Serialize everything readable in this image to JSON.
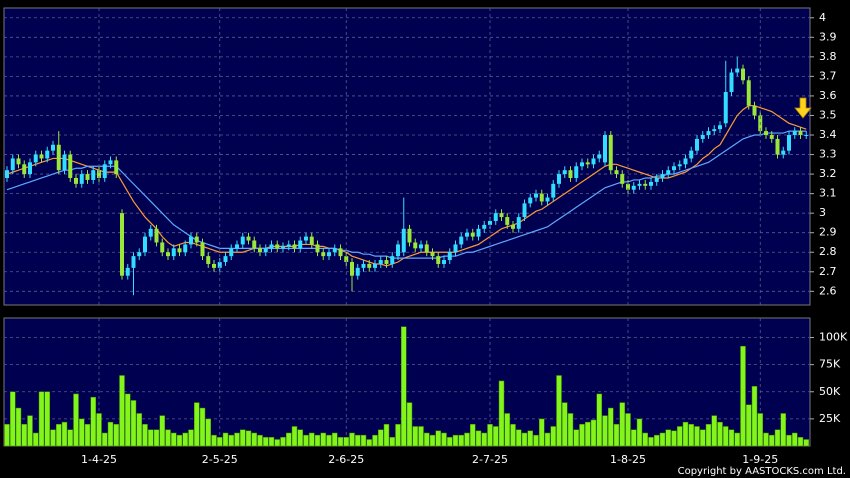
{
  "chart_data": [
    {
      "type": "candlestick",
      "up_color": "#33ddff",
      "down_color": "#9be63a",
      "grid": true,
      "ylim": [
        2.53,
        4.05
      ],
      "yticks": [
        2.6,
        2.7,
        2.8,
        2.9,
        3,
        3.1,
        3.2,
        3.3,
        3.4,
        3.5,
        3.6,
        3.7,
        3.8,
        3.9,
        4
      ],
      "open": [
        3.18,
        3.22,
        3.28,
        3.25,
        3.2,
        3.26,
        3.3,
        3.28,
        3.32,
        3.35,
        3.22,
        3.3,
        3.18,
        3.15,
        3.2,
        3.17,
        3.22,
        3.18,
        3.25,
        3.27,
        3.0,
        2.68,
        2.72,
        2.78,
        2.8,
        2.88,
        2.92,
        2.85,
        2.8,
        2.78,
        2.82,
        2.8,
        2.84,
        2.88,
        2.85,
        2.78,
        2.74,
        2.72,
        2.75,
        2.78,
        2.82,
        2.84,
        2.88,
        2.86,
        2.82,
        2.8,
        2.82,
        2.84,
        2.82,
        2.83,
        2.84,
        2.82,
        2.86,
        2.88,
        2.84,
        2.8,
        2.78,
        2.8,
        2.82,
        2.78,
        2.75,
        2.68,
        2.72,
        2.74,
        2.72,
        2.74,
        2.76,
        2.74,
        2.78,
        2.8,
        2.92,
        2.85,
        2.82,
        2.84,
        2.8,
        2.78,
        2.74,
        2.76,
        2.8,
        2.84,
        2.88,
        2.9,
        2.88,
        2.92,
        2.94,
        2.96,
        3.0,
        2.98,
        2.94,
        2.92,
        2.98,
        3.05,
        3.08,
        3.1,
        3.06,
        3.08,
        3.15,
        3.2,
        3.22,
        3.18,
        3.24,
        3.26,
        3.25,
        3.28,
        3.26,
        3.4,
        3.22,
        3.2,
        3.15,
        3.12,
        3.14,
        3.15,
        3.14,
        3.16,
        3.18,
        3.2,
        3.22,
        3.24,
        3.25,
        3.28,
        3.32,
        3.38,
        3.4,
        3.42,
        3.43,
        3.46,
        3.62,
        3.72,
        3.74,
        3.68,
        3.55,
        3.5,
        3.42,
        3.4,
        3.38,
        3.3,
        3.32,
        3.4,
        3.42,
        3.4
      ],
      "high": [
        3.24,
        3.3,
        3.3,
        3.27,
        3.28,
        3.32,
        3.32,
        3.34,
        3.37,
        3.42,
        3.32,
        3.32,
        3.2,
        3.22,
        3.22,
        3.24,
        3.24,
        3.27,
        3.29,
        3.29,
        3.02,
        2.74,
        2.8,
        2.82,
        2.9,
        2.94,
        2.94,
        2.87,
        2.82,
        2.84,
        2.84,
        2.86,
        2.9,
        2.9,
        2.87,
        2.8,
        2.76,
        2.77,
        2.8,
        2.84,
        2.86,
        2.9,
        2.9,
        2.88,
        2.84,
        2.84,
        2.86,
        2.86,
        2.85,
        2.86,
        2.86,
        2.88,
        2.9,
        2.9,
        2.86,
        2.82,
        2.82,
        2.84,
        2.84,
        2.8,
        2.77,
        2.74,
        2.76,
        2.76,
        2.76,
        2.78,
        2.78,
        2.8,
        2.86,
        3.08,
        2.94,
        2.87,
        2.86,
        2.86,
        2.82,
        2.8,
        2.78,
        2.82,
        2.86,
        2.9,
        2.92,
        2.92,
        2.94,
        2.96,
        2.98,
        3.02,
        3.02,
        3.0,
        2.96,
        3.0,
        3.07,
        3.1,
        3.12,
        3.12,
        3.1,
        3.17,
        3.22,
        3.24,
        3.24,
        3.26,
        3.28,
        3.28,
        3.3,
        3.32,
        3.42,
        3.42,
        3.24,
        3.22,
        3.17,
        3.16,
        3.17,
        3.17,
        3.18,
        3.2,
        3.22,
        3.24,
        3.26,
        3.27,
        3.3,
        3.34,
        3.4,
        3.42,
        3.44,
        3.45,
        3.47,
        3.78,
        3.74,
        3.8,
        3.76,
        3.7,
        3.57,
        3.52,
        3.44,
        3.42,
        3.4,
        3.34,
        3.42,
        3.44,
        3.44,
        3.42
      ],
      "low": [
        3.16,
        3.2,
        3.23,
        3.18,
        3.18,
        3.24,
        3.26,
        3.26,
        3.3,
        3.2,
        3.2,
        3.16,
        3.13,
        3.13,
        3.15,
        3.15,
        3.16,
        3.16,
        3.23,
        3.18,
        2.66,
        2.66,
        2.58,
        2.76,
        2.78,
        2.86,
        2.83,
        2.78,
        2.76,
        2.76,
        2.78,
        2.78,
        2.82,
        2.83,
        2.76,
        2.72,
        2.7,
        2.7,
        2.73,
        2.76,
        2.8,
        2.82,
        2.84,
        2.8,
        2.78,
        2.78,
        2.8,
        2.8,
        2.8,
        2.81,
        2.8,
        2.8,
        2.84,
        2.82,
        2.78,
        2.76,
        2.76,
        2.78,
        2.76,
        2.73,
        2.6,
        2.66,
        2.7,
        2.7,
        2.7,
        2.72,
        2.72,
        2.72,
        2.76,
        2.78,
        2.83,
        2.8,
        2.8,
        2.78,
        2.76,
        2.72,
        2.72,
        2.74,
        2.78,
        2.82,
        2.86,
        2.86,
        2.86,
        2.9,
        2.92,
        2.94,
        2.96,
        2.92,
        2.9,
        2.9,
        2.96,
        3.03,
        3.06,
        3.04,
        3.04,
        3.06,
        3.13,
        3.18,
        3.16,
        3.16,
        3.22,
        3.23,
        3.23,
        3.26,
        3.24,
        3.2,
        3.18,
        3.13,
        3.1,
        3.1,
        3.12,
        3.12,
        3.12,
        3.14,
        3.16,
        3.18,
        3.2,
        3.22,
        3.23,
        3.26,
        3.3,
        3.36,
        3.38,
        3.4,
        3.41,
        3.44,
        3.6,
        3.7,
        3.66,
        3.53,
        3.48,
        3.4,
        3.38,
        3.36,
        3.28,
        3.28,
        3.3,
        3.38,
        3.38,
        3.38
      ],
      "close": [
        3.22,
        3.28,
        3.25,
        3.2,
        3.26,
        3.3,
        3.28,
        3.32,
        3.35,
        3.22,
        3.3,
        3.18,
        3.15,
        3.2,
        3.17,
        3.22,
        3.18,
        3.25,
        3.27,
        3.2,
        2.68,
        2.72,
        2.78,
        2.8,
        2.88,
        2.92,
        2.85,
        2.8,
        2.78,
        2.82,
        2.8,
        2.84,
        2.88,
        2.85,
        2.78,
        2.74,
        2.72,
        2.75,
        2.78,
        2.82,
        2.84,
        2.88,
        2.86,
        2.82,
        2.8,
        2.82,
        2.84,
        2.82,
        2.83,
        2.84,
        2.82,
        2.86,
        2.88,
        2.84,
        2.8,
        2.78,
        2.8,
        2.82,
        2.78,
        2.75,
        2.68,
        2.72,
        2.74,
        2.72,
        2.74,
        2.76,
        2.74,
        2.78,
        2.84,
        2.92,
        2.85,
        2.82,
        2.84,
        2.8,
        2.78,
        2.74,
        2.76,
        2.8,
        2.84,
        2.88,
        2.9,
        2.88,
        2.92,
        2.94,
        2.96,
        3.0,
        2.98,
        2.94,
        2.92,
        2.98,
        3.05,
        3.08,
        3.1,
        3.06,
        3.08,
        3.15,
        3.2,
        3.22,
        3.18,
        3.24,
        3.26,
        3.25,
        3.28,
        3.3,
        3.4,
        3.22,
        3.2,
        3.15,
        3.12,
        3.14,
        3.15,
        3.14,
        3.16,
        3.18,
        3.2,
        3.22,
        3.24,
        3.25,
        3.28,
        3.32,
        3.38,
        3.4,
        3.42,
        3.43,
        3.45,
        3.62,
        3.72,
        3.74,
        3.68,
        3.55,
        3.5,
        3.42,
        3.4,
        3.38,
        3.3,
        3.32,
        3.4,
        3.42,
        3.4,
        3.4
      ],
      "lines": [
        {
          "color": "#ff9933",
          "values": [
            3.2,
            3.21,
            3.22,
            3.23,
            3.24,
            3.25,
            3.26,
            3.27,
            3.28,
            3.28,
            3.28,
            3.27,
            3.26,
            3.25,
            3.24,
            3.23,
            3.22,
            3.21,
            3.21,
            3.21,
            3.16,
            3.11,
            3.06,
            3.02,
            2.98,
            2.95,
            2.92,
            2.88,
            2.85,
            2.83,
            2.84,
            2.85,
            2.85,
            2.84,
            2.83,
            2.82,
            2.81,
            2.8,
            2.8,
            2.8,
            2.8,
            2.8,
            2.81,
            2.82,
            2.82,
            2.82,
            2.83,
            2.83,
            2.83,
            2.83,
            2.83,
            2.84,
            2.84,
            2.84,
            2.83,
            2.83,
            2.82,
            2.82,
            2.81,
            2.8,
            2.78,
            2.77,
            2.76,
            2.75,
            2.74,
            2.74,
            2.73,
            2.74,
            2.75,
            2.77,
            2.78,
            2.79,
            2.8,
            2.8,
            2.8,
            2.8,
            2.8,
            2.8,
            2.8,
            2.81,
            2.82,
            2.83,
            2.84,
            2.86,
            2.88,
            2.9,
            2.92,
            2.93,
            2.94,
            2.95,
            2.97,
            2.99,
            3.01,
            3.02,
            3.04,
            3.06,
            3.08,
            3.1,
            3.12,
            3.14,
            3.16,
            3.18,
            3.2,
            3.22,
            3.24,
            3.25,
            3.25,
            3.24,
            3.23,
            3.22,
            3.21,
            3.2,
            3.19,
            3.18,
            3.18,
            3.18,
            3.19,
            3.2,
            3.21,
            3.23,
            3.25,
            3.28,
            3.3,
            3.33,
            3.35,
            3.4,
            3.45,
            3.5,
            3.53,
            3.55,
            3.55,
            3.54,
            3.53,
            3.52,
            3.5,
            3.48,
            3.46,
            3.45,
            3.44,
            3.43
          ]
        },
        {
          "color": "#5fa8ff",
          "values": [
            3.12,
            3.13,
            3.14,
            3.15,
            3.16,
            3.17,
            3.18,
            3.19,
            3.2,
            3.21,
            3.22,
            3.22,
            3.23,
            3.23,
            3.24,
            3.24,
            3.24,
            3.24,
            3.24,
            3.24,
            3.21,
            3.18,
            3.15,
            3.12,
            3.09,
            3.06,
            3.03,
            3.0,
            2.97,
            2.94,
            2.92,
            2.9,
            2.88,
            2.86,
            2.85,
            2.84,
            2.83,
            2.82,
            2.82,
            2.82,
            2.82,
            2.82,
            2.82,
            2.82,
            2.82,
            2.82,
            2.82,
            2.82,
            2.82,
            2.82,
            2.82,
            2.82,
            2.82,
            2.82,
            2.82,
            2.82,
            2.82,
            2.82,
            2.81,
            2.81,
            2.8,
            2.8,
            2.79,
            2.79,
            2.78,
            2.78,
            2.78,
            2.77,
            2.77,
            2.77,
            2.77,
            2.77,
            2.77,
            2.77,
            2.77,
            2.77,
            2.78,
            2.78,
            2.78,
            2.79,
            2.8,
            2.8,
            2.81,
            2.82,
            2.83,
            2.84,
            2.85,
            2.86,
            2.87,
            2.88,
            2.89,
            2.9,
            2.91,
            2.92,
            2.93,
            2.95,
            2.97,
            2.99,
            3.01,
            3.03,
            3.05,
            3.07,
            3.09,
            3.11,
            3.13,
            3.14,
            3.15,
            3.16,
            3.16,
            3.17,
            3.17,
            3.18,
            3.18,
            3.19,
            3.19,
            3.2,
            3.2,
            3.21,
            3.22,
            3.23,
            3.24,
            3.25,
            3.26,
            3.28,
            3.3,
            3.32,
            3.34,
            3.36,
            3.38,
            3.39,
            3.4,
            3.4,
            3.41,
            3.41,
            3.41,
            3.41,
            3.42,
            3.42,
            3.42,
            3.42
          ]
        }
      ]
    },
    {
      "type": "bar",
      "color": "#84f51c",
      "grid": true,
      "ylim": [
        0,
        118000
      ],
      "yticks": [
        {
          "value": 25000,
          "label": "25K"
        },
        {
          "value": 50000,
          "label": "50K"
        },
        {
          "value": 75000,
          "label": "75K"
        },
        {
          "value": 100000,
          "label": "100K"
        }
      ],
      "categories": [
        null,
        null,
        null,
        null,
        null,
        null,
        null,
        null,
        null,
        null,
        null,
        null,
        null,
        null,
        null,
        null,
        "1-4-25",
        null,
        null,
        null,
        null,
        null,
        null,
        null,
        null,
        null,
        null,
        null,
        null,
        null,
        null,
        null,
        null,
        null,
        null,
        null,
        null,
        "2-5-25",
        null,
        null,
        null,
        null,
        null,
        null,
        null,
        null,
        null,
        null,
        null,
        null,
        null,
        null,
        null,
        null,
        null,
        null,
        null,
        null,
        null,
        "2-6-25",
        null,
        null,
        null,
        null,
        null,
        null,
        null,
        null,
        null,
        null,
        null,
        null,
        null,
        null,
        null,
        null,
        null,
        null,
        null,
        null,
        null,
        null,
        null,
        null,
        "2-7-25",
        null,
        null,
        null,
        null,
        null,
        null,
        null,
        null,
        null,
        null,
        null,
        null,
        null,
        null,
        null,
        null,
        null,
        null,
        null,
        null,
        null,
        null,
        null,
        "1-8-25",
        null,
        null,
        null,
        null,
        null,
        null,
        null,
        null,
        null,
        null,
        null,
        null,
        null,
        null,
        null,
        null,
        null,
        null,
        null,
        null,
        null,
        null,
        "1-9-25",
        null,
        null,
        null,
        null,
        null,
        null,
        null,
        null
      ],
      "values": [
        20000,
        50000,
        35000,
        20000,
        28000,
        12000,
        50000,
        50000,
        15000,
        20000,
        22000,
        15000,
        48000,
        25000,
        20000,
        45000,
        30000,
        12000,
        22000,
        20000,
        65000,
        48000,
        42000,
        30000,
        20000,
        15000,
        15000,
        28000,
        15000,
        12000,
        10000,
        12000,
        15000,
        40000,
        35000,
        25000,
        10000,
        8000,
        12000,
        10000,
        12000,
        15000,
        14000,
        12000,
        10000,
        8000,
        8000,
        6000,
        8000,
        12000,
        18000,
        15000,
        10000,
        12000,
        10000,
        12000,
        10000,
        12000,
        8000,
        8000,
        12000,
        10000,
        10000,
        6000,
        10000,
        15000,
        20000,
        8000,
        20000,
        110000,
        40000,
        18000,
        18000,
        12000,
        10000,
        14000,
        12000,
        8000,
        10000,
        10000,
        12000,
        20000,
        14000,
        12000,
        20000,
        18000,
        60000,
        30000,
        20000,
        15000,
        12000,
        14000,
        10000,
        25000,
        12000,
        18000,
        65000,
        40000,
        30000,
        15000,
        20000,
        22000,
        24000,
        48000,
        28000,
        35000,
        20000,
        40000,
        30000,
        15000,
        25000,
        12000,
        8000,
        10000,
        12000,
        15000,
        14000,
        18000,
        22000,
        20000,
        18000,
        15000,
        20000,
        28000,
        22000,
        18000,
        15000,
        12000,
        92000,
        38000,
        55000,
        30000,
        12000,
        10000,
        15000,
        30000,
        10000,
        12000,
        8000,
        6000
      ]
    }
  ],
  "footer": {
    "copyright": "Copyright by AASTOCKS.com Ltd."
  }
}
